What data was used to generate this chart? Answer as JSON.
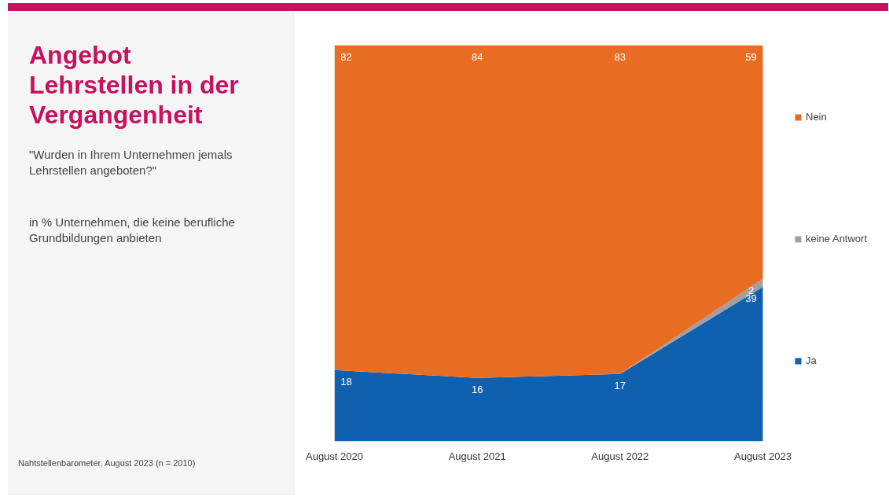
{
  "chart_data": {
    "type": "area",
    "title": "Angebot Lehrstellen in der Vergangenheit",
    "subtitle": "\"Wurden in Ihrem Unternehmen jemals Lehrstellen angeboten?\"",
    "annotations": [
      "in % Unternehmen, die keine berufliche Grundbildungen anbieten",
      "Nahtstellenbarometer, August 2023 (n = 2010)"
    ],
    "categories": [
      "August 2020",
      "August 2021",
      "August 2022",
      "August 2023"
    ],
    "stacked": true,
    "ylim": [
      0,
      100
    ],
    "tick_labels": "x",
    "grid": false,
    "legend": "right",
    "series": [
      {
        "name": "Ja",
        "color": "#1060b0",
        "values": [
          18,
          16,
          17,
          39
        ],
        "value_labels": [
          "18",
          "16",
          "17",
          "39"
        ]
      },
      {
        "name": "keine Antwort",
        "color": "#a0a0a0",
        "values": [
          0,
          0,
          0,
          2
        ],
        "value_labels": [
          null,
          null,
          null,
          "2"
        ]
      },
      {
        "name": "Nein",
        "color": "#e86c22",
        "values": [
          82,
          84,
          83,
          59
        ],
        "value_labels": [
          "82",
          "84",
          "83",
          "59"
        ]
      }
    ]
  }
}
